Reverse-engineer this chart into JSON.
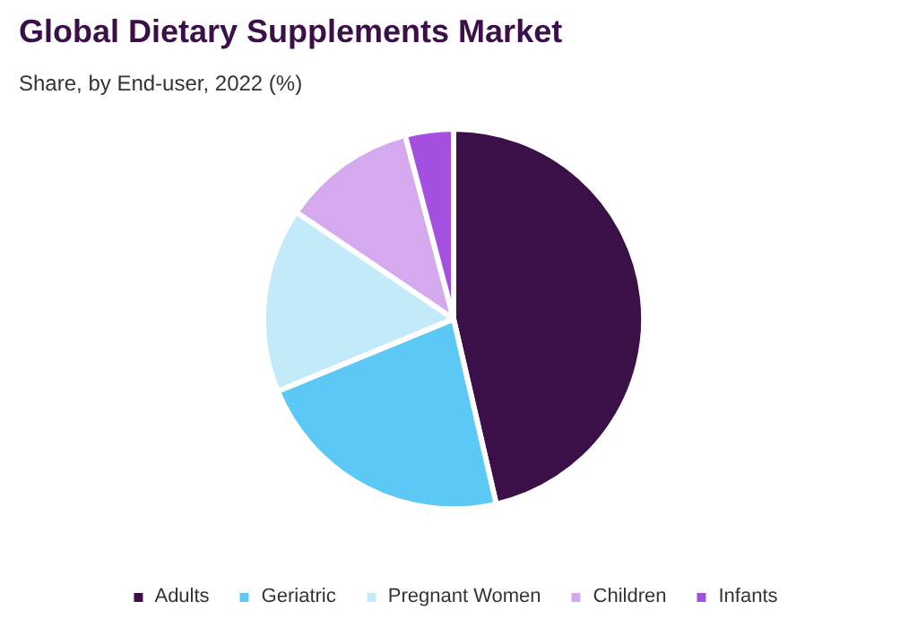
{
  "chart_data": {
    "type": "pie",
    "title": "Global Dietary Supplements Market",
    "subtitle": "Share, by End-user, 2022 (%)",
    "categories": [
      "Adults",
      "Geriatric",
      "Pregnant Women",
      "Children",
      "Infants"
    ],
    "values": [
      46.4,
      22.4,
      15.7,
      11.4,
      4.1
    ],
    "colors": [
      "#3b1048",
      "#5bc8f5",
      "#c2eaf9",
      "#d4a9ee",
      "#a350e0"
    ],
    "legend": "bottom"
  }
}
